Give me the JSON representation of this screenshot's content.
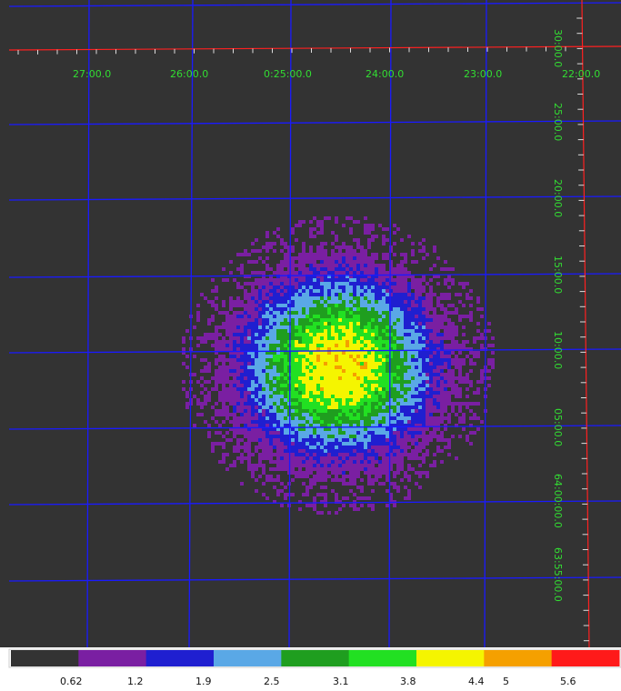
{
  "image": {
    "background_color": "#333333",
    "grid_color": "#1a1aff",
    "axis_color": "#ff2020",
    "label_color": "#33dd33"
  },
  "ra_axis": {
    "labels": [
      "27:00.0",
      "26:00.0",
      "0:25:00.0",
      "24:00.0",
      "23:00.0",
      "22:00.0"
    ]
  },
  "dec_axis": {
    "labels": [
      "30:00.0",
      "25:00.0",
      "20:00.0",
      "15:00.0",
      "10:00.0",
      "05:00.0",
      "64:00:00.0",
      "63:55:00.0"
    ]
  },
  "colorbar": {
    "colors": [
      "#333333",
      "#7a1fa2",
      "#1f1fd0",
      "#5aa8e6",
      "#1f9e1f",
      "#22e022",
      "#f5f500",
      "#f5a000",
      "#ff1a1a"
    ],
    "tick_labels": [
      "0.62",
      "1.2",
      "1.9",
      "2.5",
      "3.1",
      "3.8",
      "4.4",
      "5",
      "5.6"
    ]
  }
}
